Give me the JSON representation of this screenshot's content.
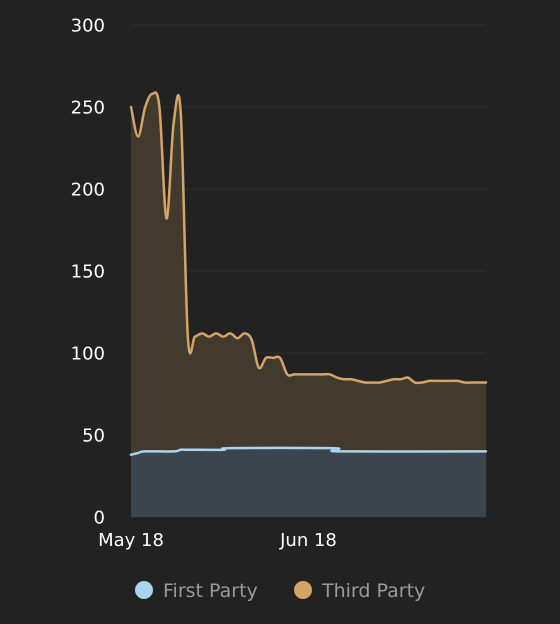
{
  "colors": {
    "background": "#222222",
    "grid": "#2e2e2e",
    "first_party_line": "#a9d4ec",
    "first_party_fill": "#3a454d",
    "third_party_line": "#d4a467",
    "third_party_fill": "#433a2e"
  },
  "chart_data": {
    "type": "area",
    "title": "",
    "xlabel": "",
    "ylabel": "",
    "ylim": [
      0,
      300
    ],
    "yticks": [
      0,
      50,
      100,
      150,
      200,
      250,
      300
    ],
    "xlim": [
      "2018-05-18",
      "2018-07-07"
    ],
    "xticks": [
      {
        "date": "2018-05-18",
        "label": "May 18"
      },
      {
        "date": "2018-06-12",
        "label": "Jun 18"
      }
    ],
    "grid": true,
    "stacked": true,
    "legend": "bottom",
    "series": [
      {
        "name": "First Party",
        "x": [
          "2018-05-18",
          "2018-05-19",
          "2018-05-20",
          "2018-05-24",
          "2018-05-25",
          "2018-05-26",
          "2018-05-31",
          "2018-06-01",
          "2018-06-15",
          "2018-06-16",
          "2018-06-17",
          "2018-07-07"
        ],
        "values": [
          38,
          39,
          40,
          40,
          41,
          41,
          41,
          42,
          42,
          41,
          40,
          40
        ]
      },
      {
        "name": "Third Party",
        "x": [
          "2018-05-18",
          "2018-05-19",
          "2018-05-20",
          "2018-05-21",
          "2018-05-22",
          "2018-05-23",
          "2018-05-24",
          "2018-05-25",
          "2018-05-26",
          "2018-05-27",
          "2018-05-28",
          "2018-05-29",
          "2018-05-30",
          "2018-05-31",
          "2018-06-01",
          "2018-06-02",
          "2018-06-03",
          "2018-06-04",
          "2018-06-05",
          "2018-06-06",
          "2018-06-07",
          "2018-06-08",
          "2018-06-09",
          "2018-06-10",
          "2018-06-11",
          "2018-06-12",
          "2018-06-13",
          "2018-06-14",
          "2018-06-15",
          "2018-06-16",
          "2018-06-17",
          "2018-06-18",
          "2018-06-19",
          "2018-06-20",
          "2018-06-21",
          "2018-06-22",
          "2018-06-23",
          "2018-06-24",
          "2018-06-25",
          "2018-06-26",
          "2018-06-27",
          "2018-06-28",
          "2018-06-29",
          "2018-06-30",
          "2018-07-01",
          "2018-07-02",
          "2018-07-03",
          "2018-07-04",
          "2018-07-05",
          "2018-07-06",
          "2018-07-07"
        ],
        "values": [
          250,
          232,
          250,
          258,
          250,
          182,
          240,
          247,
          110,
          110,
          112,
          110,
          112,
          110,
          112,
          109,
          112,
          108,
          91,
          97,
          97,
          97,
          87,
          87,
          87,
          87,
          87,
          87,
          87,
          85,
          84,
          84,
          83,
          82,
          82,
          82,
          83,
          84,
          84,
          85,
          82,
          82,
          83,
          83,
          83,
          83,
          83,
          82,
          82,
          82,
          82
        ]
      }
    ]
  }
}
